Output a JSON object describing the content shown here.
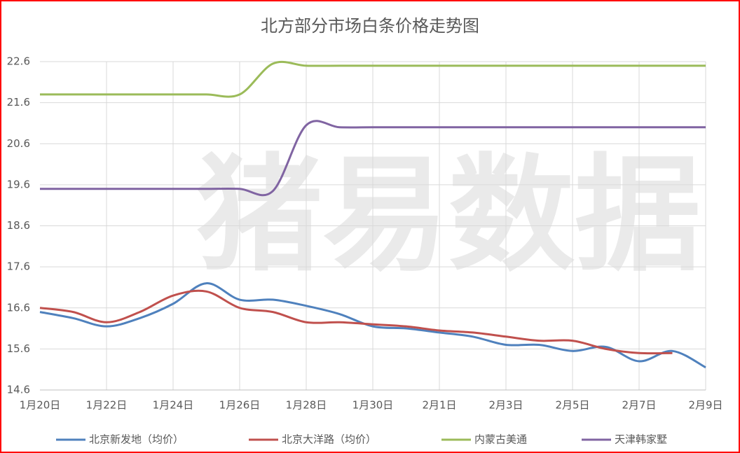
{
  "chart_data": {
    "type": "line",
    "title": "北方部分市场白条价格走势图",
    "watermark": "猪易数据",
    "categories": [
      "1月20日",
      null,
      "1月22日",
      null,
      "1月24日",
      null,
      "1月26日",
      null,
      "1月28日",
      null,
      "1月30日",
      null,
      "2月1日",
      null,
      "2月3日",
      null,
      "2月5日",
      null,
      "2月7日",
      null,
      "2月9日"
    ],
    "ylim": [
      14.6,
      22.6
    ],
    "yticks": [
      14.6,
      15.6,
      16.6,
      17.6,
      18.6,
      19.6,
      20.6,
      21.6,
      22.6
    ],
    "grid": true,
    "legend": "bottom",
    "series": [
      {
        "name": "北京新发地（均价）",
        "color": "#4f81bd",
        "values": [
          16.5,
          16.35,
          16.15,
          16.35,
          16.7,
          17.2,
          16.8,
          16.8,
          16.65,
          16.45,
          16.15,
          16.1,
          16.0,
          15.9,
          15.7,
          15.7,
          15.55,
          15.65,
          15.3,
          15.55,
          15.15
        ]
      },
      {
        "name": "北京大洋路（均价）",
        "color": "#c0504d",
        "values": [
          16.6,
          16.5,
          16.25,
          16.5,
          16.9,
          17.0,
          16.6,
          16.5,
          16.25,
          16.25,
          16.2,
          16.15,
          16.05,
          16.0,
          15.9,
          15.8,
          15.8,
          15.6,
          15.5,
          15.5,
          null
        ]
      },
      {
        "name": "内蒙古美通",
        "color": "#9bbb59",
        "values": [
          21.8,
          21.8,
          21.8,
          21.8,
          21.8,
          21.8,
          21.8,
          22.55,
          22.5,
          22.5,
          22.5,
          22.5,
          22.5,
          22.5,
          22.5,
          22.5,
          22.5,
          22.5,
          22.5,
          22.5,
          22.5
        ]
      },
      {
        "name": "天津韩家墅",
        "color": "#8064a2",
        "values": [
          19.5,
          19.5,
          19.5,
          19.5,
          19.5,
          19.5,
          19.5,
          19.45,
          21.05,
          21.0,
          21.0,
          21.0,
          21.0,
          21.0,
          21.0,
          21.0,
          21.0,
          21.0,
          21.0,
          21.0,
          21.0
        ]
      }
    ]
  }
}
